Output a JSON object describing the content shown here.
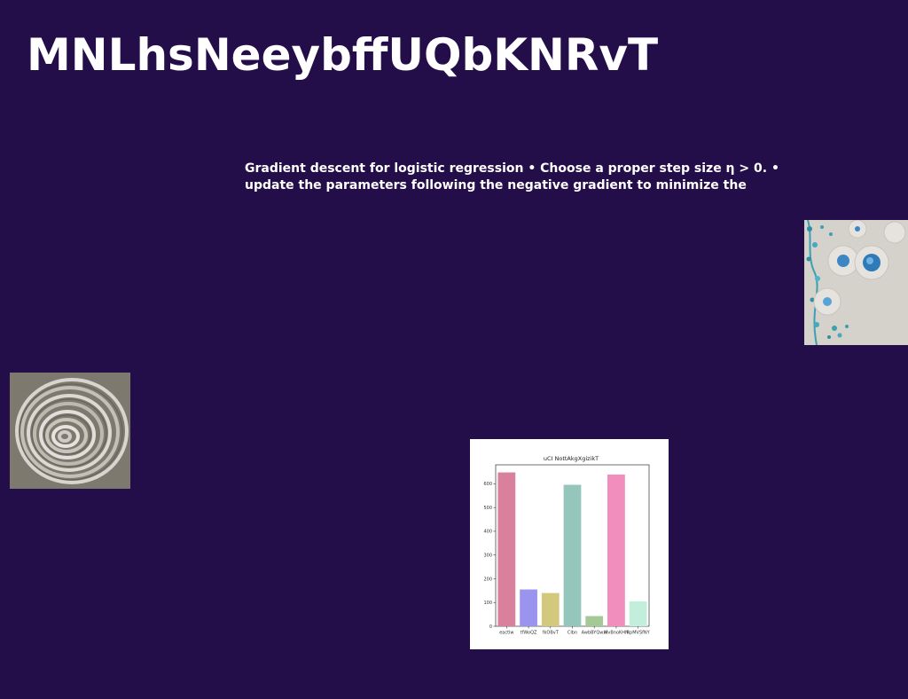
{
  "slide": {
    "title": "MNLhsNeeybffUQbKNRvT",
    "body": "Gradient descent for logistic regression • Choose a proper step size η > 0. • update the parameters following the negative gradient to minimize the",
    "background_color": "#240e4a"
  },
  "images": {
    "beads": "photo of blue beads in dishes",
    "paper": "photo of curled white paper spiral"
  },
  "chart_data": {
    "type": "bar",
    "title": "uCI NottAkgXgizikT",
    "categories": [
      "eactlw",
      "tfWoQZ",
      "fkOBvT",
      "CIbn",
      "AwbBYQwxi",
      "MvBnoKHN",
      "RpMVSfNY"
    ],
    "values": [
      648,
      155,
      140,
      596,
      43,
      639,
      105
    ],
    "colors": [
      "#d9809c",
      "#9b94ee",
      "#d2c97c",
      "#94c6bc",
      "#a5c897",
      "#f28ebd",
      "#c2eedb"
    ],
    "ylim": [
      0,
      680
    ],
    "yticks": [
      0,
      100,
      200,
      300,
      400,
      500,
      600
    ],
    "xlabel": "",
    "ylabel": "",
    "grid": false
  }
}
